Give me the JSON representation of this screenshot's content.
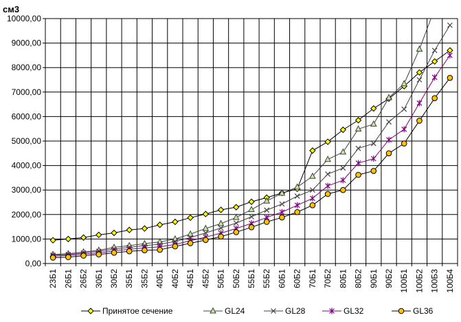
{
  "chart_data": {
    "type": "line",
    "unit_label": "см3",
    "ylim": [
      0,
      10000
    ],
    "ytick_labels": [
      "0,00",
      "1000,00",
      "2000,00",
      "3000,00",
      "4000,00",
      "5000,00",
      "6000,00",
      "7000,00",
      "8000,00",
      "9000,00",
      "10000,00"
    ],
    "grid": true,
    "legend_position": "bottom",
    "categories": [
      "23Б1",
      "26Б1",
      "26Б2",
      "30Б1",
      "30Б2",
      "35Б1",
      "35Б2",
      "40Б1",
      "40Б2",
      "45Б1",
      "45Б2",
      "50Б1",
      "50Б2",
      "55Б1",
      "55Б2",
      "60Б1",
      "60Б2",
      "70Б1",
      "70Б2",
      "80Б1",
      "80Б2",
      "90Б1",
      "90Б2",
      "100Б1",
      "100Б2",
      "100Б3",
      "100Б4"
    ],
    "series": [
      {
        "name": "Принятое сечение",
        "color": "#000000",
        "marker": "diamond",
        "values": [
          950,
          1000,
          1060,
          1170,
          1250,
          1370,
          1430,
          1580,
          1700,
          1870,
          2020,
          2190,
          2300,
          2520,
          2690,
          2880,
          3050,
          4610,
          4970,
          5460,
          5850,
          6330,
          6730,
          7240,
          7800,
          8250,
          8700
        ]
      },
      {
        "name": "GL24",
        "color": "#404040",
        "marker": "triangle",
        "values": [
          370,
          400,
          470,
          540,
          660,
          730,
          810,
          880,
          1000,
          1200,
          1430,
          1630,
          1880,
          2200,
          2550,
          2870,
          3120,
          3560,
          4250,
          4550,
          5490,
          5690,
          6770,
          7340,
          8750,
          10400,
          11500
        ]
      },
      {
        "name": "GL28",
        "color": "#404040",
        "marker": "x",
        "values": [
          340,
          370,
          430,
          500,
          590,
          660,
          730,
          790,
          900,
          1060,
          1250,
          1450,
          1650,
          1910,
          2180,
          2430,
          2750,
          3000,
          3650,
          3900,
          4700,
          4900,
          5780,
          6300,
          7500,
          8700,
          9730
        ]
      },
      {
        "name": "GL32",
        "color": "#800080",
        "marker": "star",
        "values": [
          300,
          330,
          380,
          430,
          520,
          580,
          640,
          680,
          780,
          930,
          1080,
          1240,
          1430,
          1640,
          1880,
          2100,
          2380,
          2660,
          3170,
          3400,
          4100,
          4280,
          5050,
          5480,
          6550,
          7600,
          8500
        ]
      },
      {
        "name": "GL36",
        "color": "#000000",
        "marker": "circle",
        "values": [
          240,
          260,
          320,
          370,
          440,
          500,
          540,
          560,
          700,
          830,
          960,
          1100,
          1280,
          1480,
          1700,
          1880,
          2100,
          2380,
          2840,
          3000,
          3620,
          3780,
          4500,
          4900,
          5830,
          6750,
          7580
        ]
      }
    ]
  }
}
